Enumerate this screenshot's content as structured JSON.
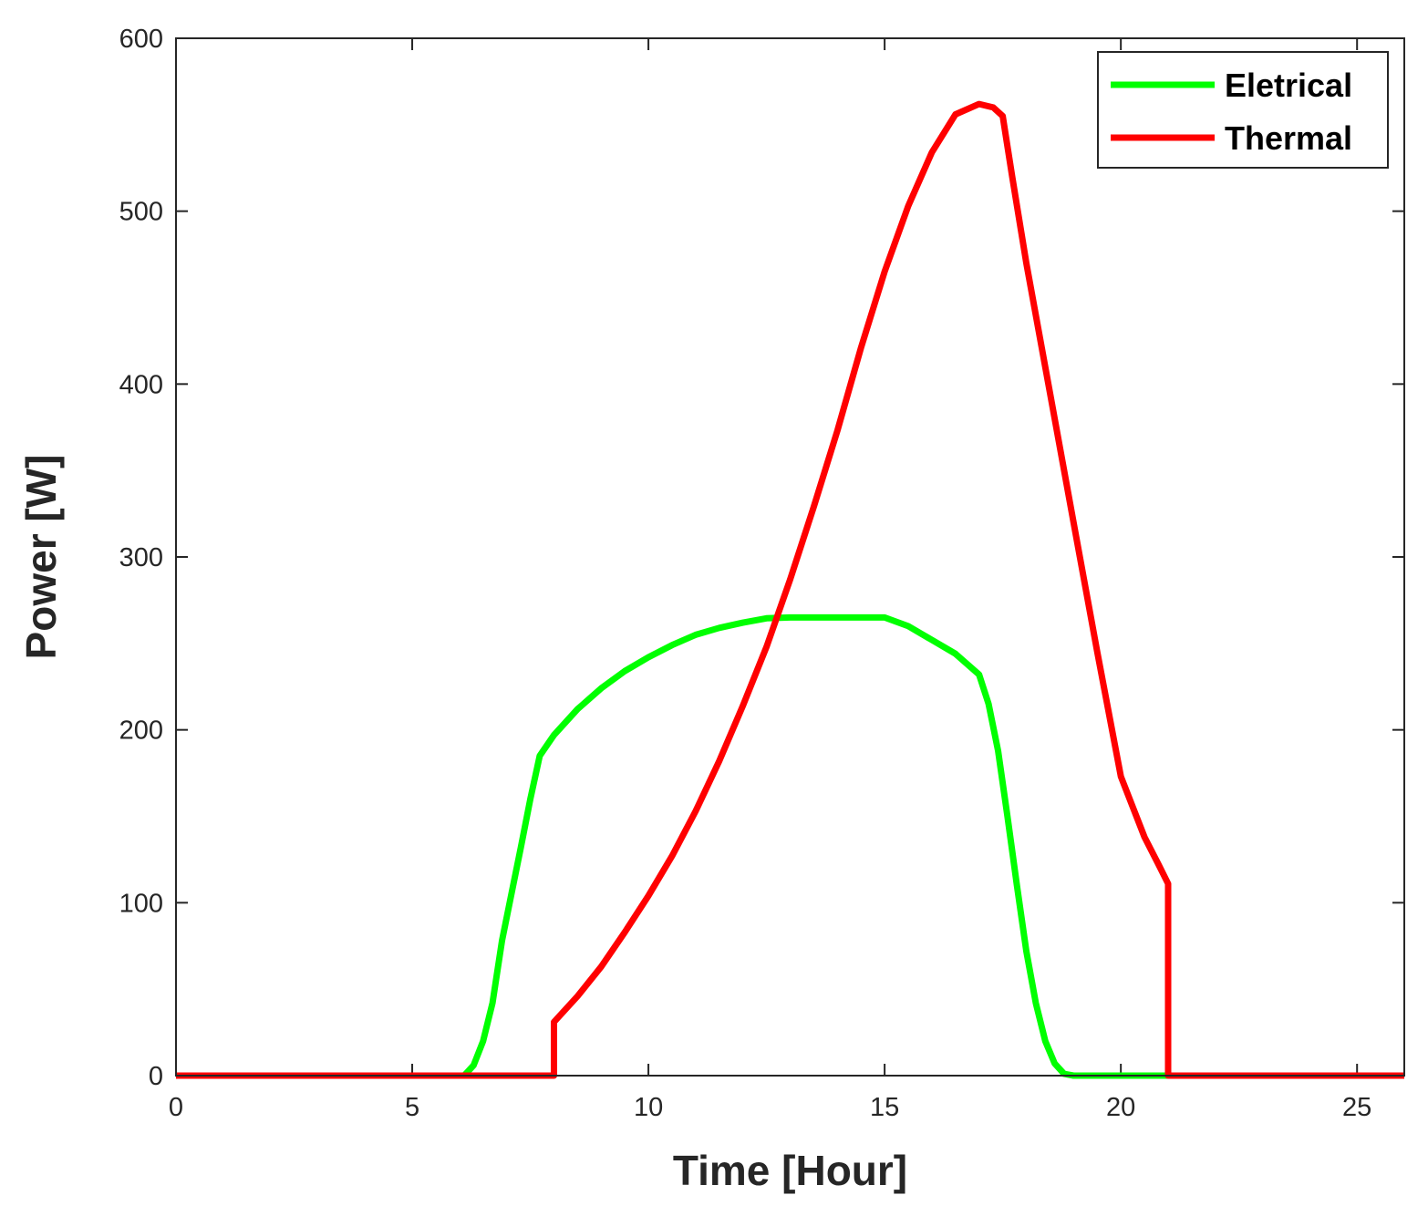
{
  "chart_data": {
    "type": "line",
    "xlabel": "Time [Hour]",
    "ylabel": "Power [W]",
    "xlim": [
      0,
      26
    ],
    "ylim": [
      0,
      600
    ],
    "xticks": [
      0,
      5,
      10,
      15,
      20,
      25
    ],
    "yticks": [
      0,
      100,
      200,
      300,
      400,
      500,
      600
    ],
    "grid": false,
    "legend_position": "top-right",
    "series": [
      {
        "name": "Eletrical",
        "color": "#00ff00",
        "points": [
          [
            0,
            0
          ],
          [
            6.1,
            0
          ],
          [
            6.3,
            6
          ],
          [
            6.5,
            20
          ],
          [
            6.7,
            42
          ],
          [
            6.9,
            78
          ],
          [
            7.1,
            105
          ],
          [
            7.3,
            132
          ],
          [
            7.5,
            160
          ],
          [
            7.7,
            185
          ],
          [
            8.0,
            197
          ],
          [
            8.5,
            212
          ],
          [
            9.0,
            224
          ],
          [
            9.5,
            234
          ],
          [
            10.0,
            242
          ],
          [
            10.5,
            249
          ],
          [
            11.0,
            255
          ],
          [
            11.5,
            259
          ],
          [
            12.0,
            262
          ],
          [
            12.5,
            264.5
          ],
          [
            13.0,
            265
          ],
          [
            14.0,
            265
          ],
          [
            15.0,
            265
          ],
          [
            15.5,
            260
          ],
          [
            16.0,
            252
          ],
          [
            16.5,
            244
          ],
          [
            17.0,
            232
          ],
          [
            17.2,
            215
          ],
          [
            17.4,
            188
          ],
          [
            17.6,
            150
          ],
          [
            17.8,
            110
          ],
          [
            18.0,
            72
          ],
          [
            18.2,
            42
          ],
          [
            18.4,
            20
          ],
          [
            18.6,
            7
          ],
          [
            18.8,
            1
          ],
          [
            19.0,
            0
          ],
          [
            26,
            0
          ]
        ]
      },
      {
        "name": "Thermal",
        "color": "#ff0000",
        "points": [
          [
            0,
            0
          ],
          [
            8.0,
            0
          ],
          [
            8.0,
            31
          ],
          [
            8.5,
            46
          ],
          [
            9.0,
            63
          ],
          [
            9.5,
            83
          ],
          [
            10.0,
            104
          ],
          [
            10.5,
            127
          ],
          [
            11.0,
            153
          ],
          [
            11.5,
            182
          ],
          [
            12.0,
            214
          ],
          [
            12.5,
            248
          ],
          [
            13.0,
            287
          ],
          [
            13.5,
            329
          ],
          [
            14.0,
            373
          ],
          [
            14.5,
            421
          ],
          [
            15.0,
            465
          ],
          [
            15.5,
            503
          ],
          [
            16.0,
            534
          ],
          [
            16.5,
            556
          ],
          [
            17.0,
            562
          ],
          [
            17.3,
            560
          ],
          [
            17.5,
            555
          ],
          [
            17.7,
            520
          ],
          [
            18.0,
            470
          ],
          [
            18.5,
            395
          ],
          [
            19.0,
            320
          ],
          [
            19.5,
            245
          ],
          [
            20.0,
            173
          ],
          [
            20.5,
            138
          ],
          [
            20.8,
            122
          ],
          [
            21.0,
            111
          ],
          [
            21.0,
            0
          ],
          [
            26,
            0
          ]
        ]
      }
    ]
  }
}
